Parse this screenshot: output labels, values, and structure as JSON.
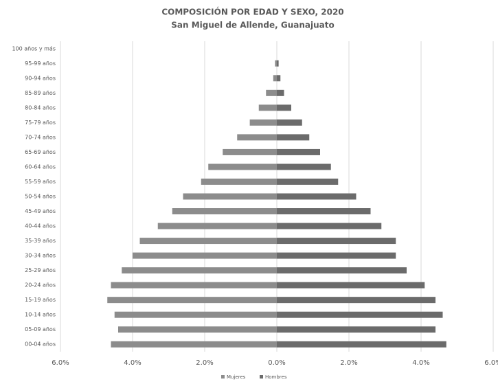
{
  "chart_data": {
    "type": "pyramid",
    "title": "COMPOSICIÓN POR EDAD Y SEXO, 2020",
    "subtitle": "San Miguel de Allende, Guanajuato",
    "categories": [
      "100 años y más",
      "95-99 años",
      "90-94 años",
      "85-89 años",
      "80-84 años",
      "75-79 años",
      "70-74 años",
      "65-69 años",
      "60-64 años",
      "55-59 años",
      "50-54 años",
      "45-49 años",
      "40-44 años",
      "35-39 años",
      "30-34 años",
      "25-29 años",
      "20-24 años",
      "15-19 años",
      "10-14 años",
      "05-09 años",
      "00-04 años"
    ],
    "series": [
      {
        "name": "Mujeres",
        "color": "#8c8c8c",
        "values": [
          0,
          -0.05,
          -0.1,
          -0.3,
          -0.5,
          -0.75,
          -1.1,
          -1.5,
          -1.9,
          -2.1,
          -2.6,
          -2.9,
          -3.3,
          -3.8,
          -4.0,
          -4.3,
          -4.6,
          -4.7,
          -4.5,
          -4.4,
          -4.6
        ]
      },
      {
        "name": "Hombres",
        "color": "#6b6b6b",
        "values": [
          0,
          0.05,
          0.1,
          0.2,
          0.4,
          0.7,
          0.9,
          1.2,
          1.5,
          1.7,
          2.2,
          2.6,
          2.9,
          3.3,
          3.3,
          3.6,
          4.1,
          4.4,
          4.6,
          4.4,
          4.7
        ]
      }
    ],
    "xlim": [
      -6,
      6
    ],
    "xticks": [
      {
        "value": -6,
        "label": "6.0%"
      },
      {
        "value": -4,
        "label": "4.0%"
      },
      {
        "value": -2,
        "label": "2.0%"
      },
      {
        "value": 0,
        "label": "0.0%"
      },
      {
        "value": 2,
        "label": "2.0%"
      },
      {
        "value": 4,
        "label": "4.0%"
      },
      {
        "value": 6,
        "label": "6.0%"
      }
    ],
    "grid": true
  }
}
